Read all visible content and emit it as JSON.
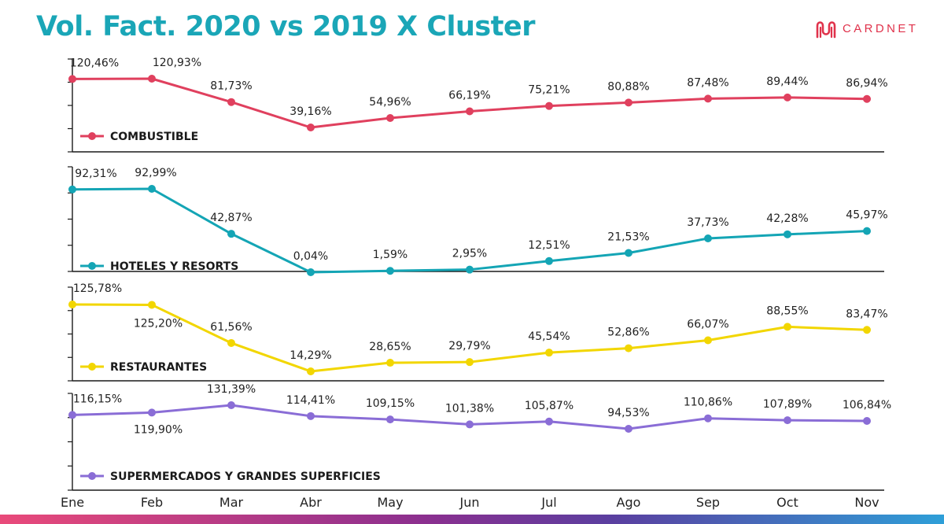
{
  "title": "Vol. Fact. 2020 vs 2019 X Cluster",
  "logo": {
    "text": "CARDNET",
    "icon": "cardnet-logo-icon"
  },
  "colors": {
    "title": "#1aa6b7",
    "brand": "#e0324b",
    "gradient": [
      "#e94a7a",
      "#8b2f8f",
      "#5a3fa0",
      "#2e9fd8"
    ]
  },
  "chart_data": {
    "type": "line",
    "categories": [
      "Ene",
      "Feb",
      "Mar",
      "Abr",
      "May",
      "Jun",
      "Jul",
      "Ago",
      "Sep",
      "Oct",
      "Nov"
    ],
    "series": [
      {
        "name": "COMBUSTIBLE",
        "color": "#e0405e",
        "values": [
          120.46,
          120.93,
          81.73,
          39.16,
          54.96,
          66.19,
          75.21,
          80.88,
          87.48,
          89.44,
          86.94
        ],
        "labels": [
          "120,46%",
          "120,93%",
          "81,73%",
          "39,16%",
          "54,96%",
          "66,19%",
          "75,21%",
          "80,88%",
          "87,48%",
          "89,44%",
          "86,94%"
        ]
      },
      {
        "name": "HOTELES Y RESORTS",
        "color": "#14a5b5",
        "values": [
          92.31,
          92.99,
          42.87,
          0.04,
          1.59,
          2.95,
          12.51,
          21.53,
          37.73,
          42.28,
          45.97
        ],
        "labels": [
          "92,31%",
          "92,99%",
          "42,87%",
          "0,04%",
          "1,59%",
          "2,95%",
          "12,51%",
          "21,53%",
          "37,73%",
          "42,28%",
          "45,97%"
        ]
      },
      {
        "name": "RESTAURANTES",
        "color": "#f2d600",
        "values": [
          125.78,
          125.2,
          61.56,
          14.29,
          28.65,
          29.79,
          45.54,
          52.86,
          66.07,
          88.55,
          83.47
        ],
        "labels": [
          "125,78%",
          "125,20%",
          "61,56%",
          "14,29%",
          "28,65%",
          "29,79%",
          "45,54%",
          "52,86%",
          "66,07%",
          "88,55%",
          "83,47%"
        ]
      },
      {
        "name": "SUPERMERCADOS Y GRANDES SUPERFICIES",
        "color": "#8a6dd6",
        "values": [
          116.15,
          119.9,
          131.39,
          114.41,
          109.15,
          101.38,
          105.87,
          94.53,
          110.86,
          107.89,
          106.84
        ],
        "labels": [
          "116,15%",
          "119,90%",
          "131,39%",
          "114,41%",
          "109,15%",
          "101,38%",
          "105,87%",
          "94,53%",
          "110,86%",
          "107,89%",
          "106,84%"
        ]
      }
    ],
    "grid": false,
    "legend": "bottom-left of each panel"
  }
}
